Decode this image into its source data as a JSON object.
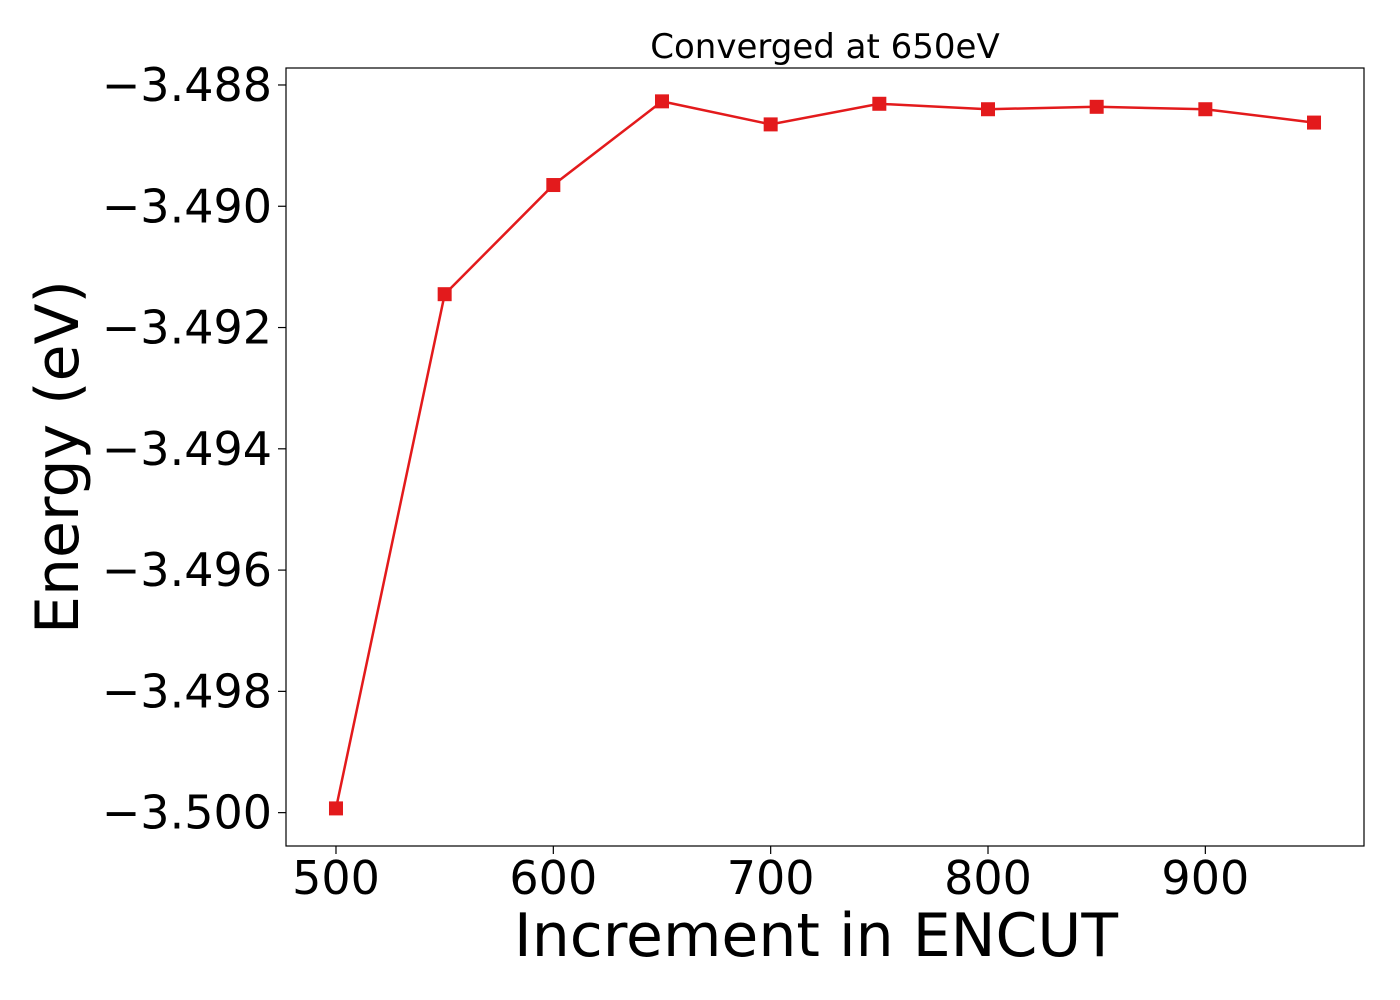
{
  "chart_data": {
    "type": "line",
    "title": "Converged at 650eV",
    "xlabel": "Increment in ENCUT",
    "ylabel": "Energy (eV)",
    "x": [
      500,
      550,
      600,
      650,
      700,
      750,
      800,
      850,
      900,
      950
    ],
    "series": [
      {
        "values": [
          -3.49993,
          -3.49145,
          -3.48965,
          -3.48827,
          -3.48865,
          -3.48831,
          -3.4884,
          -3.48836,
          -3.4884,
          -3.48862
        ]
      }
    ],
    "xlim": [
      477,
      973
    ],
    "ylim": [
      -3.50055,
      -3.48772
    ],
    "x_ticks": [
      500,
      600,
      700,
      800,
      900
    ],
    "x_tick_labels": [
      "500",
      "600",
      "700",
      "800",
      "900"
    ],
    "y_ticks": [
      -3.488,
      -3.49,
      -3.492,
      -3.494,
      -3.496,
      -3.498,
      -3.5
    ],
    "y_tick_labels": [
      "−3.488",
      "−3.490",
      "−3.492",
      "−3.494",
      "−3.496",
      "−3.498",
      "−3.500"
    ],
    "marker": "square",
    "grid": false,
    "colors": {
      "line": "#e31a1c",
      "axes": "#000000"
    }
  }
}
